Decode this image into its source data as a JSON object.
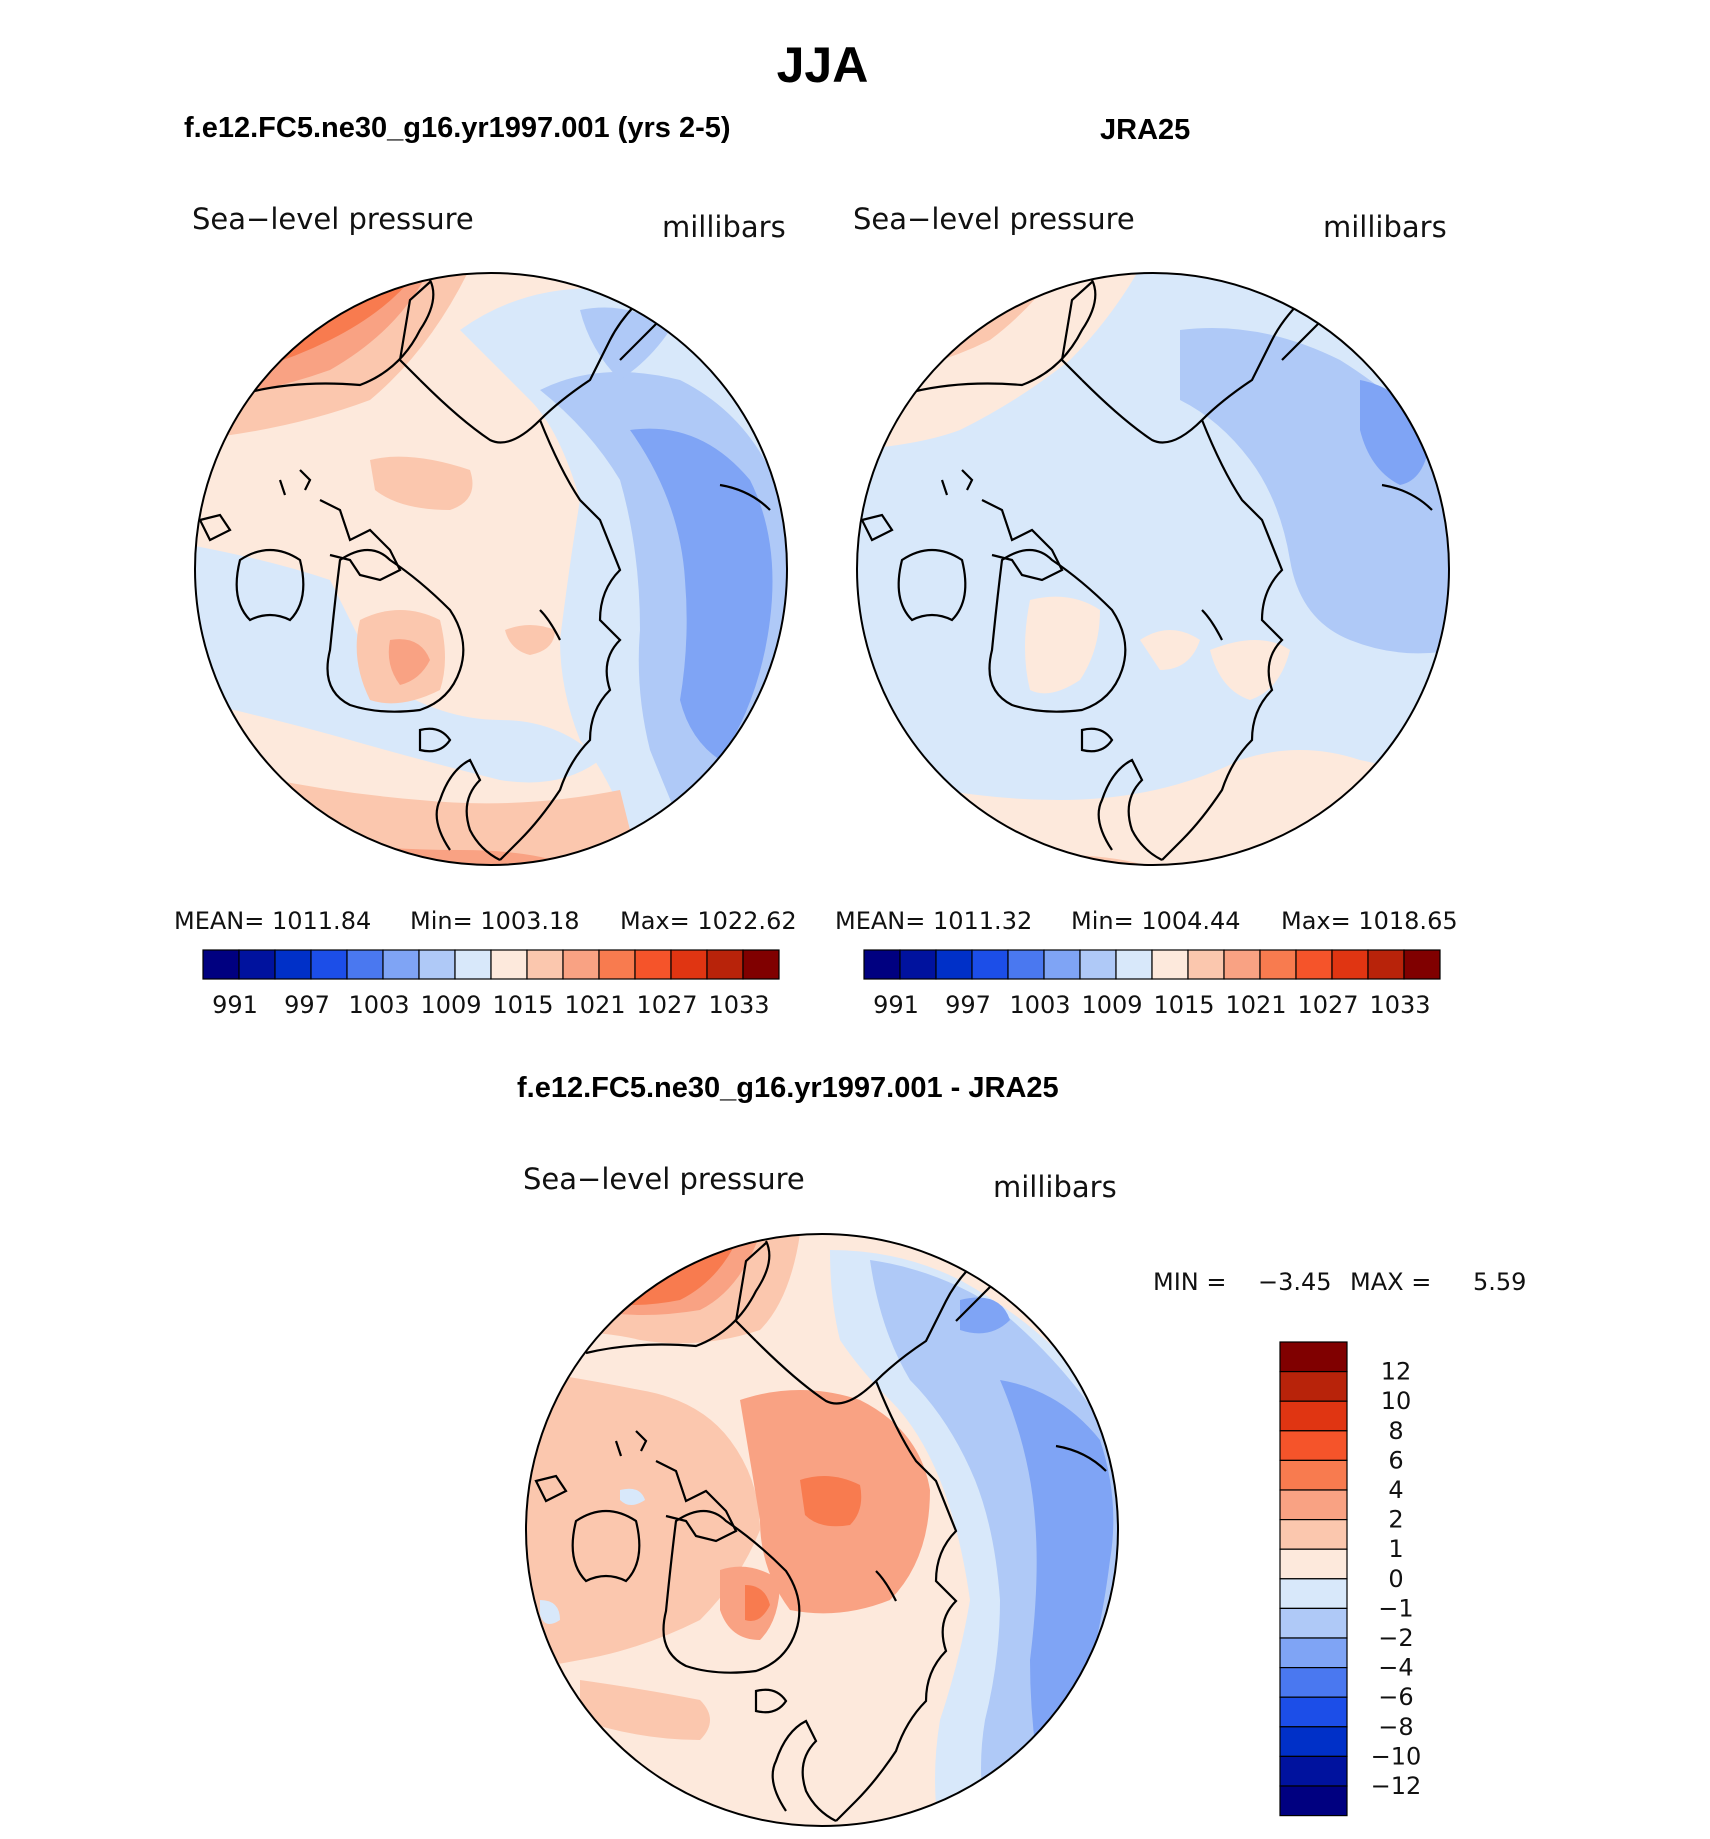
{
  "season": "JJA",
  "panels": [
    {
      "title": "f.e12.FC5.ne30_g16.yr1997.001 (yrs 2-5)",
      "variable": "Sea−level pressure",
      "units": "millibars",
      "stats": {
        "mean": "MEAN=  1011.84",
        "min": "Min=  1003.18",
        "max": "Max=  1022.62"
      }
    },
    {
      "title": "JRA25",
      "variable": "Sea−level pressure",
      "units": "millibars",
      "stats": {
        "mean": "MEAN=  1011.32",
        "min": "Min=  1004.44",
        "max": "Max=  1018.65"
      }
    },
    {
      "title": "f.e12.FC5.ne30_g16.yr1997.001 - JRA25",
      "variable": "Sea−level pressure",
      "units": "millibars",
      "stats": {
        "min_label": "MIN  =",
        "min_value": "−3.45",
        "max_label": "MAX  =",
        "max_value": "5.59"
      }
    }
  ],
  "slp_colorbar": {
    "colors": [
      "#000080",
      "#00129e",
      "#0030c8",
      "#1c4ee8",
      "#4a78f0",
      "#7fa4f5",
      "#afc9f7",
      "#d8e8fa",
      "#fde9dc",
      "#fbc7ae",
      "#f9a283",
      "#f87b4f",
      "#f5542a",
      "#e03512",
      "#b8230a",
      "#800000"
    ],
    "tick_labels": [
      "991",
      "997",
      "1003",
      "1009",
      "1015",
      "1021",
      "1027",
      "1033"
    ]
  },
  "diff_colorbar": {
    "colors": [
      "#000080",
      "#00129e",
      "#0030c8",
      "#1c4ee8",
      "#4a78f0",
      "#7fa4f5",
      "#afc9f7",
      "#d8e8fa",
      "#fde9dc",
      "#fbc7ae",
      "#f9a283",
      "#f87b4f",
      "#f5542a",
      "#e03512",
      "#b8230a",
      "#800000"
    ],
    "tick_labels": [
      "−12",
      "−10",
      "−8",
      "−6",
      "−4",
      "−2",
      "−1",
      "0",
      "1",
      "2",
      "4",
      "6",
      "8",
      "10",
      "12"
    ]
  }
}
